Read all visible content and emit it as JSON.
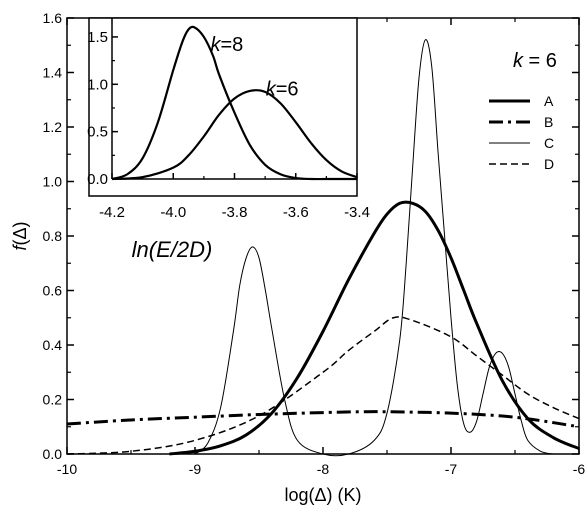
{
  "chart_data": [
    {
      "type": "line",
      "xlabel": "log(Δ) (K)",
      "ylabel": "f(Δ)",
      "xlim": [
        -10,
        -6
      ],
      "ylim": [
        0,
        1.6
      ],
      "x_ticks": [
        "-10",
        "-9",
        "-8",
        "-7",
        "-6"
      ],
      "y_ticks": [
        "0.0",
        "0.2",
        "0.4",
        "0.6",
        "0.8",
        "1.0",
        "1.2",
        "1.4",
        "1.6"
      ],
      "legend_title": "k = 6",
      "legend_position": "top-right",
      "series": [
        {
          "name": "A",
          "style": "solid-thick",
          "x": [
            -9.2,
            -9.0,
            -8.8,
            -8.6,
            -8.4,
            -8.2,
            -8.0,
            -7.8,
            -7.6,
            -7.5,
            -7.4,
            -7.3,
            -7.2,
            -7.1,
            -7.0,
            -6.9,
            -6.8,
            -6.6,
            -6.4,
            -6.2,
            -6.0
          ],
          "y": [
            0.0,
            0.01,
            0.03,
            0.07,
            0.15,
            0.28,
            0.45,
            0.64,
            0.81,
            0.88,
            0.92,
            0.92,
            0.89,
            0.82,
            0.72,
            0.6,
            0.48,
            0.27,
            0.13,
            0.06,
            0.02
          ]
        },
        {
          "name": "B",
          "style": "dash-dot-thick",
          "x": [
            -10.0,
            -9.5,
            -9.0,
            -8.5,
            -8.0,
            -7.7,
            -7.5,
            -7.0,
            -6.5,
            -6.0
          ],
          "y": [
            0.11,
            0.125,
            0.135,
            0.145,
            0.152,
            0.155,
            0.155,
            0.15,
            0.135,
            0.1
          ]
        },
        {
          "name": "C",
          "style": "solid-thin",
          "x": [
            -9.0,
            -8.9,
            -8.8,
            -8.7,
            -8.65,
            -8.6,
            -8.55,
            -8.5,
            -8.45,
            -8.4,
            -8.3,
            -8.2,
            -8.0,
            -7.8,
            -7.6,
            -7.5,
            -7.4,
            -7.35,
            -7.3,
            -7.25,
            -7.2,
            -7.15,
            -7.1,
            -7.05,
            -7.0,
            -6.95,
            -6.9,
            -6.85,
            -6.8,
            -6.75,
            -6.7,
            -6.65,
            -6.6,
            -6.55,
            -6.5,
            -6.45,
            -6.4,
            -6.3,
            -6.2
          ],
          "y": [
            0.0,
            0.04,
            0.17,
            0.45,
            0.62,
            0.72,
            0.76,
            0.72,
            0.6,
            0.46,
            0.2,
            0.05,
            0.0,
            0.0,
            0.05,
            0.15,
            0.42,
            0.7,
            1.05,
            1.38,
            1.52,
            1.42,
            1.1,
            0.8,
            0.5,
            0.25,
            0.11,
            0.08,
            0.12,
            0.22,
            0.32,
            0.37,
            0.37,
            0.32,
            0.22,
            0.12,
            0.05,
            0.01,
            0.0
          ]
        },
        {
          "name": "D",
          "style": "dashed",
          "x": [
            -10.0,
            -9.5,
            -9.0,
            -8.5,
            -8.0,
            -7.8,
            -7.6,
            -7.45,
            -7.3,
            -7.0,
            -6.8,
            -6.6,
            -6.4,
            -6.2,
            -6.0
          ],
          "y": [
            0.0,
            0.01,
            0.05,
            0.14,
            0.3,
            0.38,
            0.45,
            0.5,
            0.49,
            0.43,
            0.36,
            0.29,
            0.22,
            0.17,
            0.13
          ]
        }
      ]
    },
    {
      "type": "line",
      "position": "inset top-left",
      "xlabel": "ln(E/2D)",
      "ylabel": "",
      "xlim": [
        -4.2,
        -3.4
      ],
      "ylim": [
        0,
        1.7
      ],
      "x_ticks": [
        "-4.2",
        "-4.0",
        "-3.8",
        "-3.6",
        "-3.4"
      ],
      "y_ticks": [
        "0.0",
        "0.5",
        "1.0",
        "1.5"
      ],
      "series": [
        {
          "name": "k=8",
          "x": [
            -4.2,
            -4.15,
            -4.1,
            -4.05,
            -4.0,
            -3.97,
            -3.95,
            -3.93,
            -3.9,
            -3.87,
            -3.85,
            -3.8,
            -3.75,
            -3.7,
            -3.65,
            -3.6,
            -3.55,
            -3.5,
            -3.4
          ],
          "y": [
            0.0,
            0.05,
            0.22,
            0.6,
            1.15,
            1.45,
            1.58,
            1.6,
            1.5,
            1.3,
            1.1,
            0.7,
            0.36,
            0.15,
            0.05,
            0.01,
            0.0,
            0.0,
            0.0
          ]
        },
        {
          "name": "k=6",
          "x": [
            -4.2,
            -4.1,
            -4.0,
            -3.95,
            -3.9,
            -3.85,
            -3.8,
            -3.75,
            -3.7,
            -3.65,
            -3.6,
            -3.55,
            -3.5,
            -3.45,
            -3.4
          ],
          "y": [
            0.0,
            0.02,
            0.12,
            0.25,
            0.45,
            0.68,
            0.85,
            0.93,
            0.92,
            0.8,
            0.6,
            0.38,
            0.2,
            0.08,
            0.02
          ]
        }
      ]
    }
  ]
}
